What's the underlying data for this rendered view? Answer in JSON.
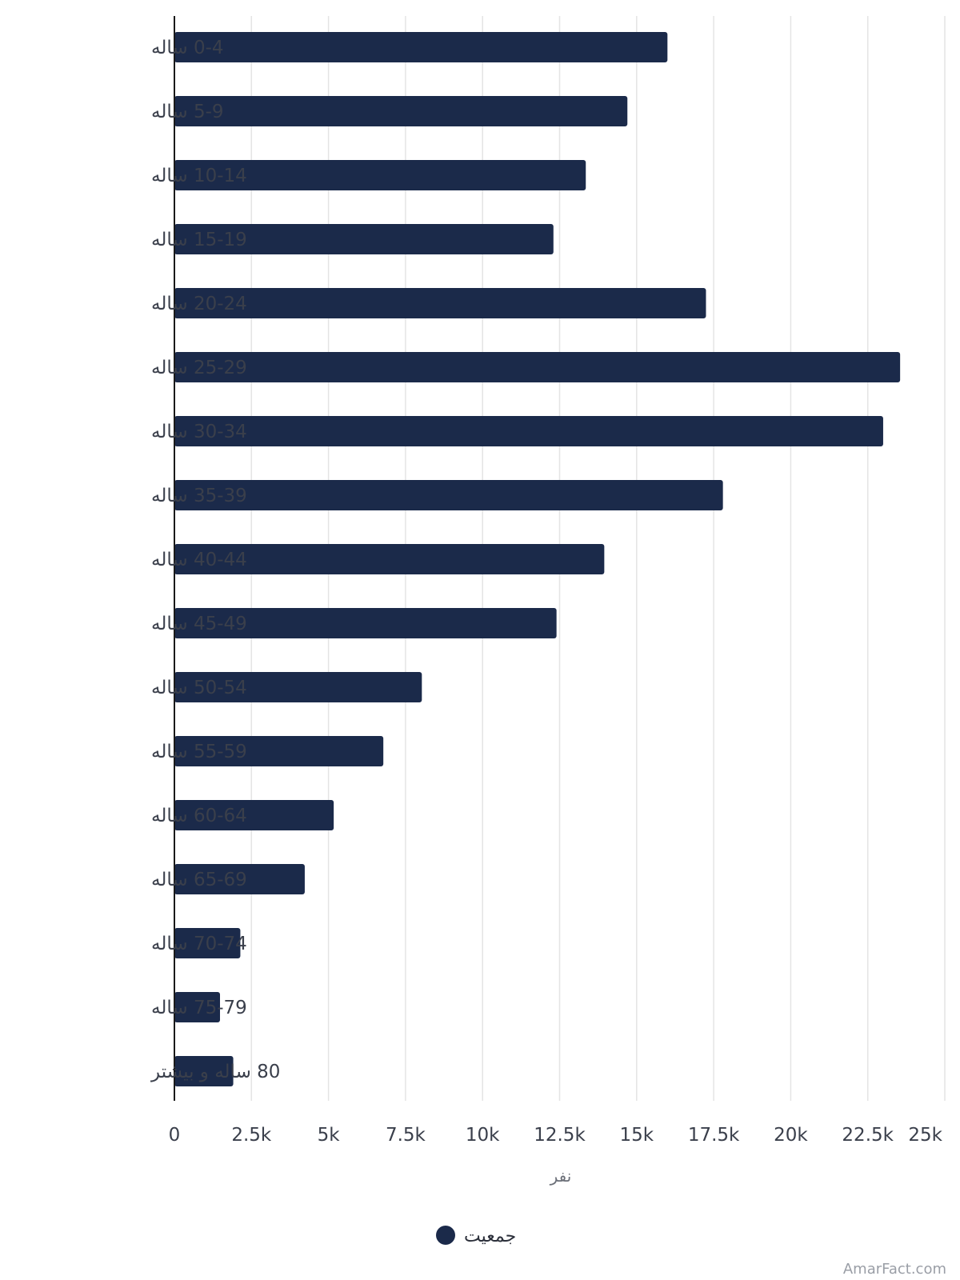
{
  "chart_data": {
    "type": "bar",
    "orientation": "horizontal",
    "categories": [
      "0-4 ساله",
      "5-9 ساله",
      "10-14 ساله",
      "15-19 ساله",
      "20-24 ساله",
      "25-29 ساله",
      "30-34 ساله",
      "35-39 ساله",
      "40-44 ساله",
      "45-49 ساله",
      "50-54 ساله",
      "55-59 ساله",
      "60-64 ساله",
      "65-69 ساله",
      "70-74 ساله",
      "75-79 ساله",
      "80 ساله و بیشتر"
    ],
    "series": [
      {
        "name": "جمعیت",
        "color": "#1b2a4a",
        "values": [
          16000,
          14700,
          13350,
          12300,
          17250,
          23550,
          23000,
          17800,
          13950,
          12400,
          8030,
          6780,
          5170,
          4230,
          2140,
          1480,
          1910
        ]
      }
    ],
    "xlabel": "نفر",
    "xlim": [
      0,
      25000
    ],
    "xticks": [
      {
        "value": 0,
        "label": "0"
      },
      {
        "value": 2500,
        "label": "2.5k"
      },
      {
        "value": 5000,
        "label": "5k"
      },
      {
        "value": 7500,
        "label": "7.5k"
      },
      {
        "value": 10000,
        "label": "10k"
      },
      {
        "value": 12500,
        "label": "12.5k"
      },
      {
        "value": 15000,
        "label": "15k"
      },
      {
        "value": 17500,
        "label": "17.5k"
      },
      {
        "value": 20000,
        "label": "20k"
      },
      {
        "value": 22500,
        "label": "22.5k"
      },
      {
        "value": 25000,
        "label": "25k"
      }
    ],
    "grid": true,
    "legend_position": "bottom-center"
  },
  "credit": "AmarFact.com",
  "colors": {
    "bar": "#1b2a4a",
    "grid": "#e4e4e4",
    "axis": "#1a1a1a"
  }
}
